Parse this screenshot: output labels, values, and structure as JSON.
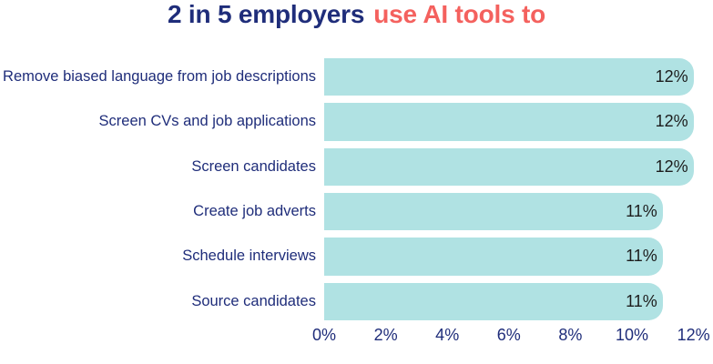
{
  "title": {
    "part1": "2 in 5 employers",
    "part2": "use AI tools to"
  },
  "colors": {
    "navy": "#1f2d7a",
    "coral": "#f4615e",
    "bar": "#b0e2e3",
    "value_text": "#1c1c1c"
  },
  "chart_data": {
    "type": "bar",
    "orientation": "horizontal",
    "title": "2 in 5 employers use AI tools to",
    "categories": [
      "Remove biased language from job descriptions",
      "Screen CVs and job applications",
      "Screen candidates",
      "Create job adverts",
      "Schedule interviews",
      "Source candidates"
    ],
    "values": [
      12,
      12,
      12,
      11,
      11,
      11
    ],
    "value_labels": [
      "12%",
      "12%",
      "12%",
      "11%",
      "11%",
      "11%"
    ],
    "xlabel": "",
    "ylabel": "",
    "xlim": [
      0,
      12
    ],
    "x_ticks": [
      "0%",
      "2%",
      "4%",
      "6%",
      "8%",
      "10%",
      "12%"
    ],
    "grid": false,
    "legend": false
  }
}
